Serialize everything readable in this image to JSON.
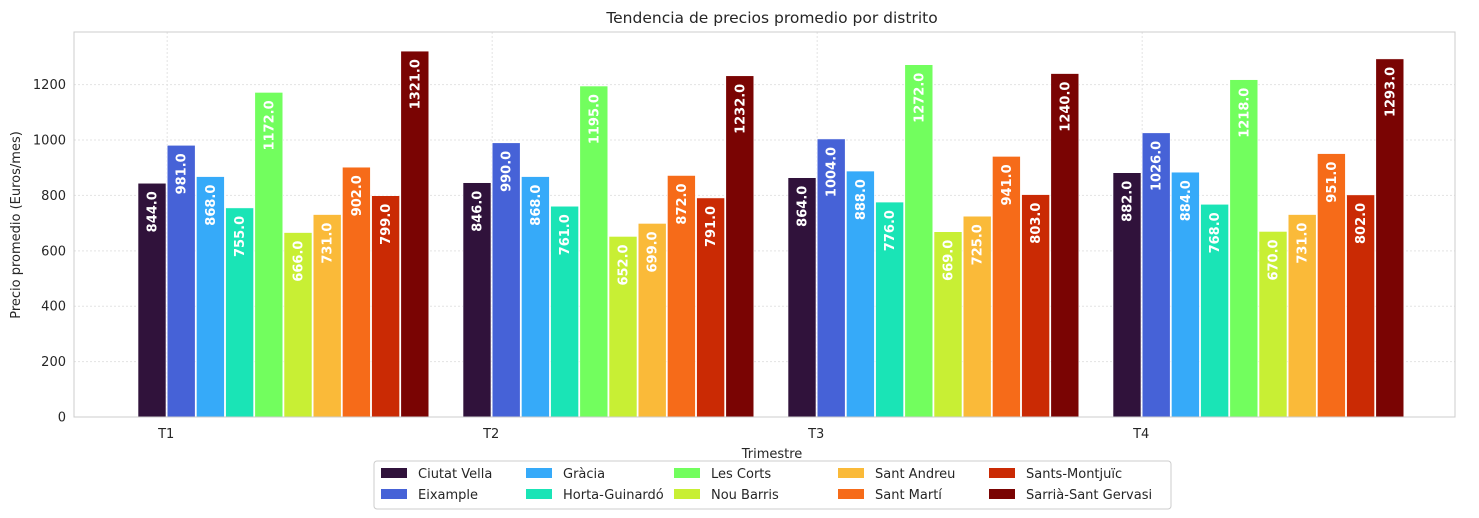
{
  "chart_data": {
    "type": "bar",
    "title": "Tendencia de precios promedio por distrito",
    "xlabel": "Trimestre",
    "ylabel": "Precio promedio (Euros/mes)",
    "categories": [
      "T1",
      "T2",
      "T3",
      "T4"
    ],
    "ylim": [
      0,
      1390
    ],
    "yticks": [
      0,
      200,
      400,
      600,
      800,
      1000,
      1200
    ],
    "grid": true,
    "legend_position": "bottom-center",
    "series": [
      {
        "name": "Ciutat Vella",
        "color": "#30123b",
        "values": [
          844.0,
          846.0,
          864.0,
          882.0
        ]
      },
      {
        "name": "Eixample",
        "color": "#4662d7",
        "values": [
          981.0,
          990.0,
          1004.0,
          1026.0
        ]
      },
      {
        "name": "Gràcia",
        "color": "#36aaf9",
        "values": [
          868.0,
          868.0,
          888.0,
          884.0
        ]
      },
      {
        "name": "Horta-Guinardó",
        "color": "#1ae4b6",
        "values": [
          755.0,
          761.0,
          776.0,
          768.0
        ]
      },
      {
        "name": "Les Corts",
        "color": "#72fe5e",
        "values": [
          1172.0,
          1195.0,
          1272.0,
          1218.0
        ]
      },
      {
        "name": "Nou Barris",
        "color": "#c8ef34",
        "values": [
          666.0,
          652.0,
          669.0,
          670.0
        ]
      },
      {
        "name": "Sant Andreu",
        "color": "#faba39",
        "values": [
          731.0,
          699.0,
          725.0,
          731.0
        ]
      },
      {
        "name": "Sant Martí",
        "color": "#f66b19",
        "values": [
          902.0,
          872.0,
          941.0,
          951.0
        ]
      },
      {
        "name": "Sants-Montjuïc",
        "color": "#ca2a04",
        "values": [
          799.0,
          791.0,
          803.0,
          802.0
        ]
      },
      {
        "name": "Sarrià-Sant Gervasi",
        "color": "#7a0403",
        "values": [
          1321.0,
          1232.0,
          1240.0,
          1293.0
        ]
      }
    ]
  }
}
